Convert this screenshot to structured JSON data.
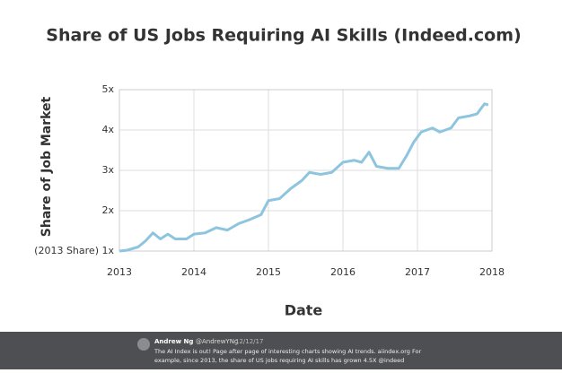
{
  "chart_data": {
    "type": "line",
    "title": "Share of US Jobs Requiring AI Skills (Indeed.com)",
    "x_label": "Date",
    "y_label": "Share of Job Market",
    "x": [
      2013.0,
      2013.1,
      2013.25,
      2013.35,
      2013.45,
      2013.55,
      2013.65,
      2013.75,
      2013.9,
      2014.0,
      2014.15,
      2014.3,
      2014.45,
      2014.6,
      2014.75,
      2014.9,
      2015.0,
      2015.15,
      2015.3,
      2015.45,
      2015.55,
      2015.7,
      2015.85,
      2016.0,
      2016.15,
      2016.25,
      2016.35,
      2016.45,
      2016.6,
      2016.75,
      2016.85,
      2016.95,
      2017.05,
      2017.2,
      2017.3,
      2017.45,
      2017.55,
      2017.7,
      2017.8,
      2017.9,
      2017.95
    ],
    "series": [
      {
        "color": "#8ec5de",
        "values": [
          1.0,
          1.02,
          1.1,
          1.25,
          1.45,
          1.3,
          1.42,
          1.3,
          1.3,
          1.42,
          1.45,
          1.58,
          1.52,
          1.68,
          1.78,
          1.9,
          2.25,
          2.3,
          2.55,
          2.75,
          2.95,
          2.9,
          2.95,
          3.2,
          3.25,
          3.2,
          3.45,
          3.1,
          3.05,
          3.05,
          3.35,
          3.7,
          3.95,
          4.05,
          3.95,
          4.05,
          4.3,
          4.35,
          4.4,
          4.65,
          4.62
        ]
      }
    ],
    "xlim": [
      2013,
      2018
    ],
    "xticks": [
      2013,
      2014,
      2015,
      2016,
      2017,
      2018
    ],
    "ylim": [
      1,
      5
    ],
    "yticks": [
      {
        "value": 1,
        "label": "(2013 Share) 1x"
      },
      {
        "value": 2,
        "label": "2x"
      },
      {
        "value": 3,
        "label": "3x"
      },
      {
        "value": 4,
        "label": "4x"
      },
      {
        "value": 5,
        "label": "5x"
      }
    ],
    "grid": true
  },
  "tweet": {
    "author": "Andrew Ng",
    "handle": "@AndrewYNg",
    "date": "12/12/17",
    "line1": "The AI Index is out! Page after page of interesting charts showing AI trends. aiindex.org For",
    "line2": "example, since 2013, the share of US jobs requiring AI skills has grown 4.5X @indeed"
  }
}
